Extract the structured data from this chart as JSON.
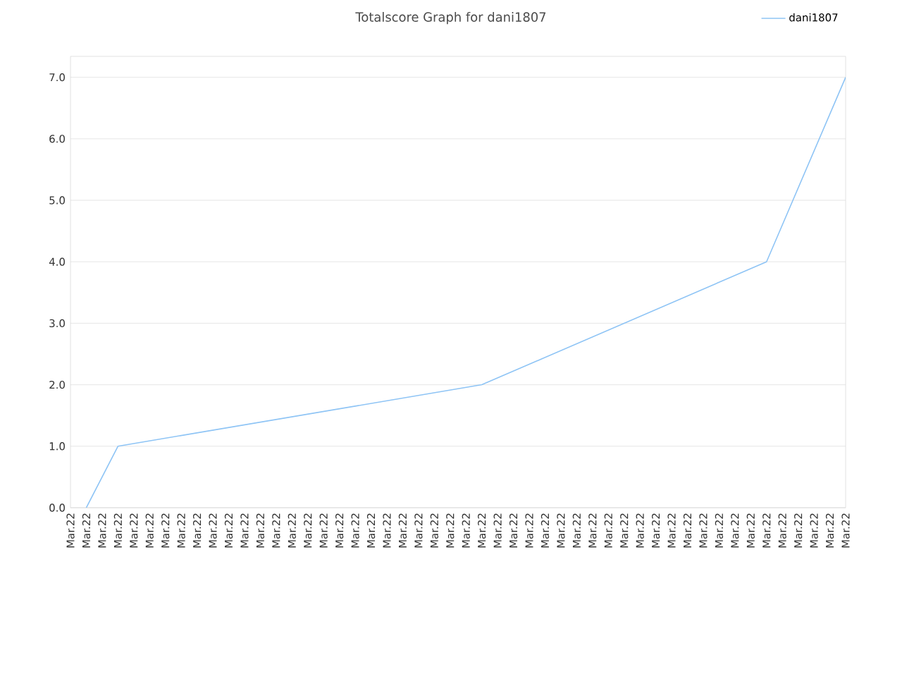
{
  "chart_data": {
    "type": "line",
    "title": "Totalscore Graph for dani1807",
    "categories": [
      "Mar.22",
      "Mar.22",
      "Mar.22",
      "Mar.22",
      "Mar.22",
      "Mar.22",
      "Mar.22",
      "Mar.22",
      "Mar.22",
      "Mar.22",
      "Mar.22",
      "Mar.22",
      "Mar.22",
      "Mar.22",
      "Mar.22",
      "Mar.22",
      "Mar.22",
      "Mar.22",
      "Mar.22",
      "Mar.22",
      "Mar.22",
      "Mar.22",
      "Mar.22",
      "Mar.22",
      "Mar.22",
      "Mar.22",
      "Mar.22",
      "Mar.22",
      "Mar.22",
      "Mar.22",
      "Mar.22",
      "Mar.22",
      "Mar.22",
      "Mar.22",
      "Mar.22",
      "Mar.22",
      "Mar.22",
      "Mar.22",
      "Mar.22",
      "Mar.22",
      "Mar.22",
      "Mar.22",
      "Mar.22",
      "Mar.22",
      "Mar.22",
      "Mar.22",
      "Mar.22",
      "Mar.22",
      "Mar.22",
      "Mar.22"
    ],
    "series": [
      {
        "name": "dani1807",
        "color": "#8ec4f5",
        "values": [
          null,
          0,
          null,
          1,
          null,
          null,
          null,
          null,
          null,
          null,
          null,
          null,
          null,
          null,
          null,
          null,
          null,
          null,
          null,
          null,
          null,
          null,
          null,
          null,
          null,
          null,
          2,
          null,
          null,
          null,
          null,
          null,
          null,
          null,
          null,
          null,
          null,
          null,
          null,
          null,
          null,
          null,
          null,
          null,
          4,
          null,
          null,
          null,
          null,
          7
        ]
      }
    ],
    "ylim": [
      0,
      7.34
    ],
    "yticks": [
      {
        "value": 0,
        "label": "0.0"
      },
      {
        "value": 1,
        "label": "1.0"
      },
      {
        "value": 2,
        "label": "2.0"
      },
      {
        "value": 3,
        "label": "3.0"
      },
      {
        "value": 4,
        "label": "4.0"
      },
      {
        "value": 5,
        "label": "5.0"
      },
      {
        "value": 6,
        "label": "6.0"
      },
      {
        "value": 7,
        "label": "7.0"
      }
    ],
    "grid": "y",
    "legend": "top right",
    "marker": "none",
    "line_style": "solid"
  }
}
